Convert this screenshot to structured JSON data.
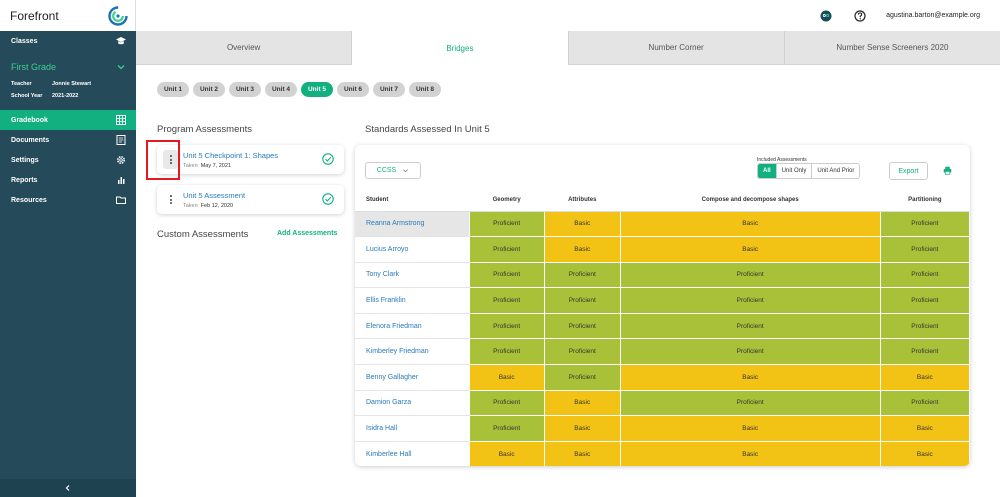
{
  "app": {
    "name": "Forefront"
  },
  "sidebar": {
    "classes_label": "Classes",
    "grade": "First Grade",
    "teacher_label": "Teacher",
    "teacher_value": "Jonnie Stewart",
    "year_label": "School Year",
    "year_value": "2021-2022",
    "items": [
      {
        "label": "Gradebook",
        "icon": "grid-icon"
      },
      {
        "label": "Documents",
        "icon": "document-icon"
      },
      {
        "label": "Settings",
        "icon": "gear-icon"
      },
      {
        "label": "Reports",
        "icon": "bar-chart-icon"
      },
      {
        "label": "Resources",
        "icon": "folder-icon"
      }
    ]
  },
  "topbar": {
    "email": "agustina.barton@example.org"
  },
  "tabs": [
    "Overview",
    "Bridges",
    "Number Corner",
    "Number Sense Screeners 2020"
  ],
  "units": [
    "Unit 1",
    "Unit 2",
    "Unit 3",
    "Unit 4",
    "Unit 5",
    "Unit 6",
    "Unit 7",
    "Unit 8"
  ],
  "program_assessments": {
    "title": "Program Assessments",
    "items": [
      {
        "title": "Unit 5 Checkpoint 1: Shapes",
        "taken_label": "Taken",
        "date": "May 7, 2021"
      },
      {
        "title": "Unit 5 Assessment",
        "taken_label": "Taken",
        "date": "Feb 12, 2020"
      }
    ]
  },
  "custom_assessments": {
    "title": "Custom Assessments",
    "add_label": "Add Assessments"
  },
  "standards": {
    "title": "Standards Assessed In Unit 5",
    "ccss": "CCSS",
    "included_label": "Included Assessments",
    "filters": [
      "All",
      "Unit Only",
      "Unit And Prior"
    ],
    "export_label": "Export",
    "columns": [
      "Student",
      "Geometry",
      "Attributes",
      "Compose and decompose shapes",
      "Partitioning"
    ],
    "rows": [
      {
        "name": "Reanna Armstrong",
        "scores": [
          "Proficient",
          "Basic",
          "Basic",
          "Proficient"
        ]
      },
      {
        "name": "Lucius Arroyo",
        "scores": [
          "Proficient",
          "Basic",
          "Basic",
          "Proficient"
        ]
      },
      {
        "name": "Tony Clark",
        "scores": [
          "Proficient",
          "Proficient",
          "Proficient",
          "Proficient"
        ]
      },
      {
        "name": "Ellis Franklin",
        "scores": [
          "Proficient",
          "Proficient",
          "Proficient",
          "Proficient"
        ]
      },
      {
        "name": "Elenora Friedman",
        "scores": [
          "Proficient",
          "Proficient",
          "Proficient",
          "Proficient"
        ]
      },
      {
        "name": "Kimberley Friedman",
        "scores": [
          "Proficient",
          "Proficient",
          "Proficient",
          "Proficient"
        ]
      },
      {
        "name": "Benny Gallagher",
        "scores": [
          "Basic",
          "Proficient",
          "Basic",
          "Basic"
        ]
      },
      {
        "name": "Damion Garza",
        "scores": [
          "Proficient",
          "Basic",
          "Proficient",
          "Proficient"
        ]
      },
      {
        "name": "Isidra Hall",
        "scores": [
          "Proficient",
          "Basic",
          "Basic",
          "Basic"
        ]
      },
      {
        "name": "Kimberlee Hall",
        "scores": [
          "Basic",
          "Basic",
          "Basic",
          "Basic"
        ]
      }
    ]
  },
  "colors": {
    "accent": "#12b081",
    "proficient": "#a9c138",
    "basic": "#f2c314",
    "sidebar": "#254b5a",
    "highlight": "#e01b24"
  }
}
